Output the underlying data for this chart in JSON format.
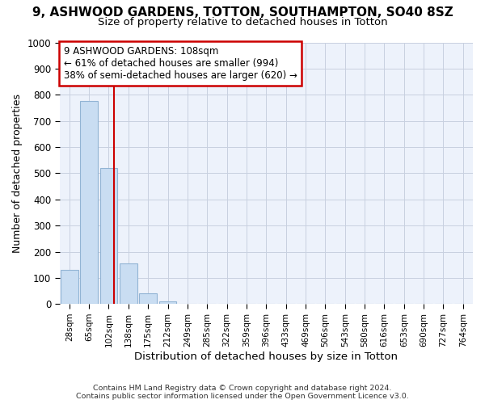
{
  "title_line1": "9, ASHWOOD GARDENS, TOTTON, SOUTHAMPTON, SO40 8SZ",
  "title_line2": "Size of property relative to detached houses in Totton",
  "xlabel": "Distribution of detached houses by size in Totton",
  "ylabel": "Number of detached properties",
  "footer_line1": "Contains HM Land Registry data © Crown copyright and database right 2024.",
  "footer_line2": "Contains public sector information licensed under the Open Government Licence v3.0.",
  "bin_labels": [
    "28sqm",
    "65sqm",
    "102sqm",
    "138sqm",
    "175sqm",
    "212sqm",
    "249sqm",
    "285sqm",
    "322sqm",
    "359sqm",
    "396sqm",
    "433sqm",
    "469sqm",
    "506sqm",
    "543sqm",
    "580sqm",
    "616sqm",
    "653sqm",
    "690sqm",
    "727sqm",
    "764sqm"
  ],
  "bar_values": [
    130,
    775,
    520,
    155,
    40,
    10,
    0,
    0,
    0,
    0,
    0,
    0,
    0,
    0,
    0,
    0,
    0,
    0,
    0,
    0,
    0
  ],
  "bar_color": "#c9ddf2",
  "bar_edge_color": "#92b4d4",
  "grid_color": "#c8d0e0",
  "annotation_text_line1": "9 ASHWOOD GARDENS: 108sqm",
  "annotation_text_line2": "← 61% of detached houses are smaller (994)",
  "annotation_text_line3": "38% of semi-detached houses are larger (620) →",
  "annotation_box_color": "#ffffff",
  "annotation_box_edge_color": "#cc0000",
  "vline_color": "#cc0000",
  "vline_x": 2.27,
  "ylim": [
    0,
    1000
  ],
  "yticks": [
    0,
    100,
    200,
    300,
    400,
    500,
    600,
    700,
    800,
    900,
    1000
  ],
  "background_color": "#ffffff",
  "plot_bg_color": "#edf2fb"
}
